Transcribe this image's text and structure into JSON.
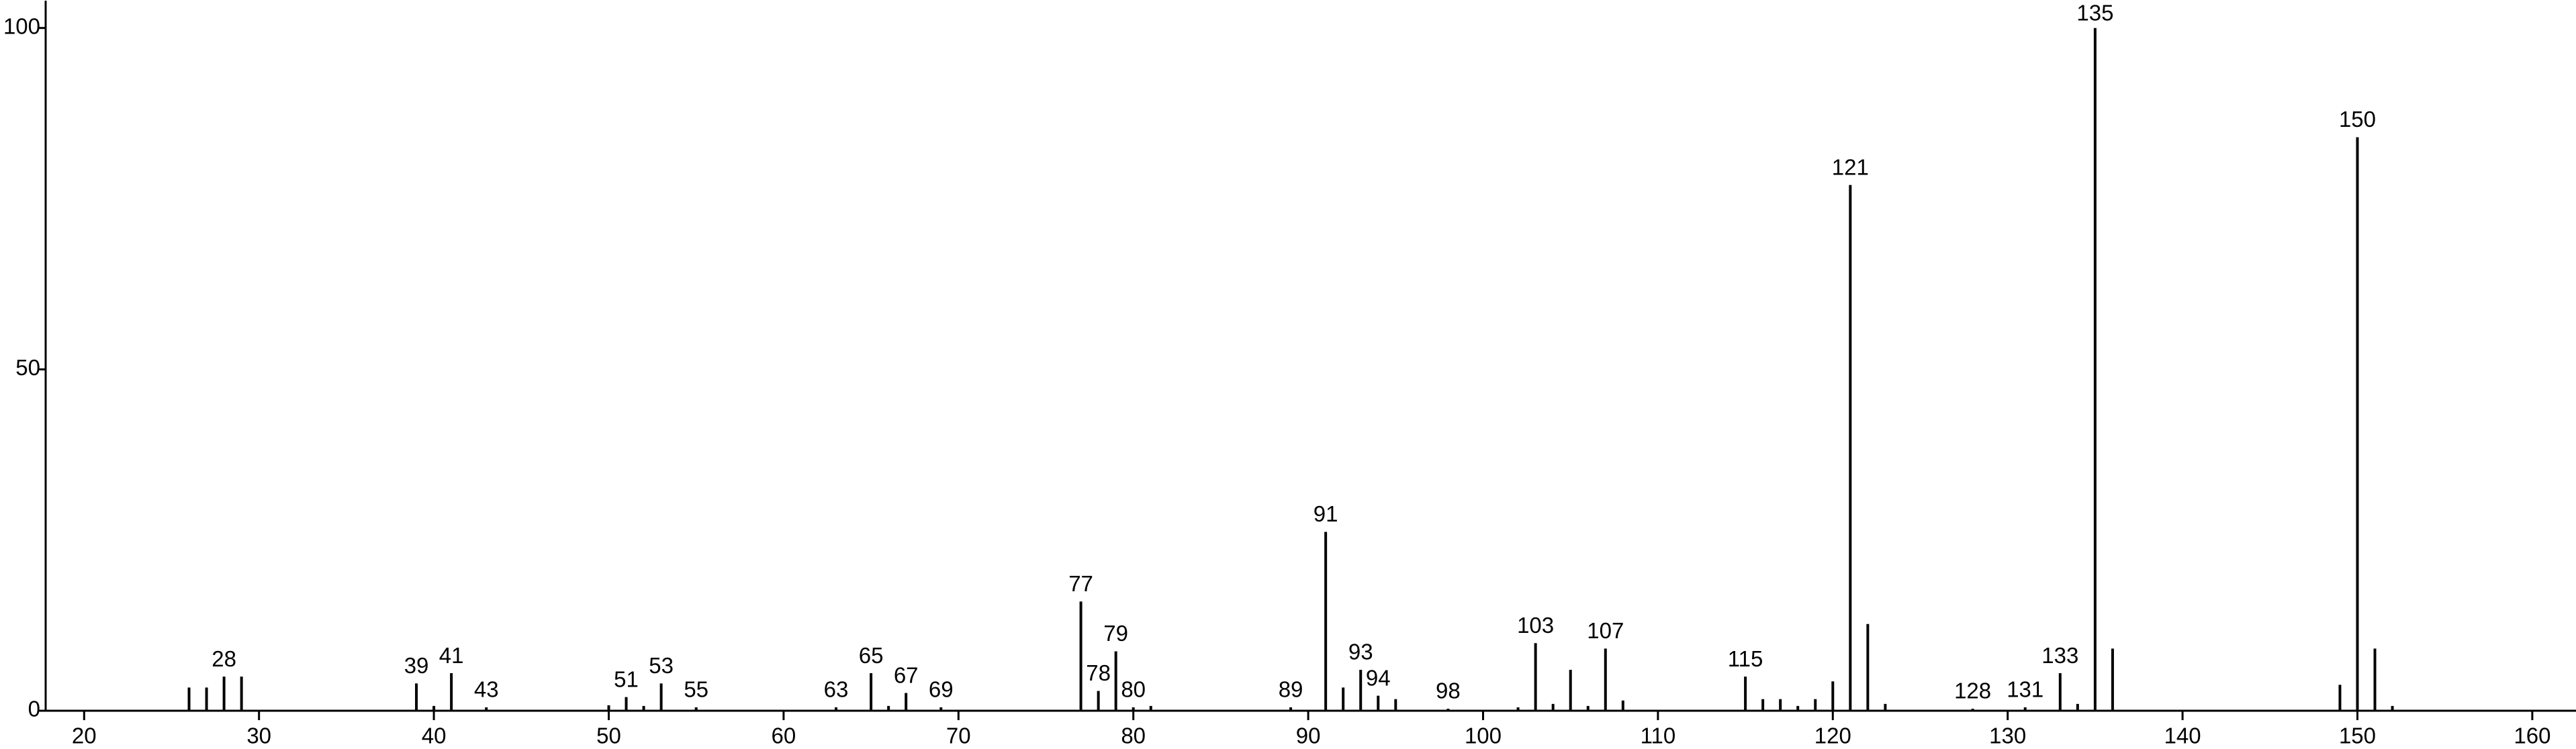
{
  "chart_data": {
    "type": "bar",
    "x": [
      26,
      27,
      28,
      29,
      39,
      40,
      41,
      43,
      50,
      51,
      52,
      53,
      55,
      63,
      65,
      66,
      67,
      69,
      77,
      78,
      79,
      80,
      81,
      89,
      91,
      92,
      93,
      94,
      95,
      98,
      102,
      103,
      104,
      105,
      106,
      107,
      108,
      115,
      116,
      117,
      118,
      119,
      120,
      121,
      122,
      123,
      128,
      131,
      133,
      134,
      135,
      136,
      149,
      150,
      151,
      152
    ],
    "values": [
      3.4,
      3.4,
      5,
      5,
      4,
      0.7,
      5.5,
      0.5,
      0.8,
      2,
      0.7,
      4,
      0.5,
      0.5,
      5.5,
      0.7,
      2.6,
      0.5,
      16,
      2.9,
      8.7,
      0.5,
      0.7,
      0.5,
      26.2,
      3.4,
      6,
      2.2,
      1.7,
      0.3,
      0.5,
      9.9,
      1,
      6,
      0.7,
      9.1,
      1.5,
      5,
      1.7,
      1.7,
      0.7,
      1.7,
      4.3,
      77,
      12.7,
      1,
      0.3,
      0.5,
      5.5,
      1,
      100,
      9.1,
      3.8,
      84,
      9.1,
      0.7
    ],
    "data_labels": [
      null,
      null,
      "28",
      null,
      "39",
      null,
      "41",
      "43",
      null,
      "51",
      null,
      "53",
      "55",
      "63",
      "65",
      null,
      "67",
      "69",
      "77",
      "78",
      "79",
      "80",
      null,
      "89",
      "91",
      null,
      "93",
      "94",
      null,
      "98",
      null,
      "103",
      null,
      null,
      null,
      "107",
      null,
      "115",
      null,
      null,
      null,
      null,
      null,
      "121",
      null,
      null,
      "128",
      "131",
      "133",
      null,
      "135",
      null,
      null,
      "150",
      null,
      null
    ],
    "color": "#000000",
    "xlim": [
      17.8,
      162.5
    ],
    "ylim": [
      0,
      104
    ],
    "xticks": [
      20,
      30,
      40,
      50,
      60,
      70,
      80,
      90,
      100,
      110,
      120,
      130,
      140,
      150,
      160
    ],
    "yticks": [
      0,
      50,
      100
    ],
    "grid": false
  }
}
